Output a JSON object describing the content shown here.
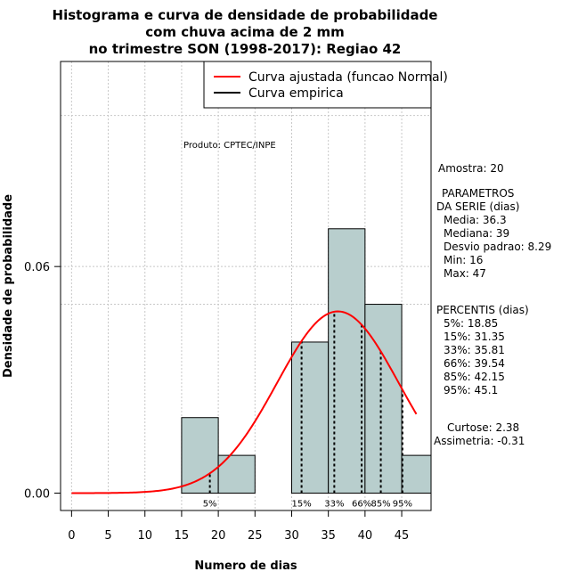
{
  "chart_data": {
    "type": "bar",
    "title_lines": [
      "Histograma e curva de densidade de probabilidade",
      "com chuva acima de 2 mm",
      "no trimestre SON (1998-2017): Regiao 42"
    ],
    "xlabel": "Numero de dias",
    "ylabel": "Densidade de probabilidade",
    "xlim": [
      -1.5,
      49
    ],
    "ylim": [
      -0.0046,
      0.1143
    ],
    "x_ticks": [
      0,
      5,
      10,
      15,
      20,
      25,
      30,
      35,
      40,
      45
    ],
    "y_ticks": [
      0.0,
      0.06
    ],
    "y_tick_labels": [
      "0.00",
      "0.06"
    ],
    "grid": true,
    "legend_position": "top-right",
    "bins": [
      {
        "from": 15,
        "to": 20,
        "density": 0.02
      },
      {
        "from": 20,
        "to": 25,
        "density": 0.01
      },
      {
        "from": 25,
        "to": 30,
        "density": 0.0
      },
      {
        "from": 30,
        "to": 35,
        "density": 0.04
      },
      {
        "from": 35,
        "to": 40,
        "density": 0.07
      },
      {
        "from": 40,
        "to": 45,
        "density": 0.05
      },
      {
        "from": 45,
        "to": 50,
        "density": 0.01
      }
    ],
    "bar_color": "#b8cecd",
    "series": [
      {
        "name": "Curva ajustada (funcao Normal)",
        "color": "#ff0000",
        "distribution": "normal",
        "mean": 36.3,
        "sd": 8.29,
        "x_range": [
          0,
          47
        ]
      },
      {
        "name": "Curva empirica",
        "color": "#000000"
      }
    ],
    "percentile_markers": [
      {
        "label": "5%",
        "x": 18.85
      },
      {
        "label": "15%",
        "x": 31.35
      },
      {
        "label": "33%",
        "x": 35.81
      },
      {
        "label": "66%",
        "x": 39.54
      },
      {
        "label": "85%",
        "x": 42.15
      },
      {
        "label": "95%",
        "x": 45.1
      }
    ],
    "annotations": {
      "produto": "Produto: CPTEC/INPE",
      "side_text": [
        "Amostra: 20",
        "PARAMETROS",
        "DA SERIE (dias)",
        "Media: 36.3",
        "Mediana: 39",
        "Desvio padrao: 8.29",
        "Min: 16",
        "Max: 47",
        "PERCENTIS (dias)",
        "5%: 18.85",
        "15%: 31.35",
        "33%: 35.81",
        "66%: 39.54",
        "85%: 42.15",
        "95%: 45.1",
        "Curtose: 2.38",
        "Assimetria: -0.31"
      ]
    }
  }
}
